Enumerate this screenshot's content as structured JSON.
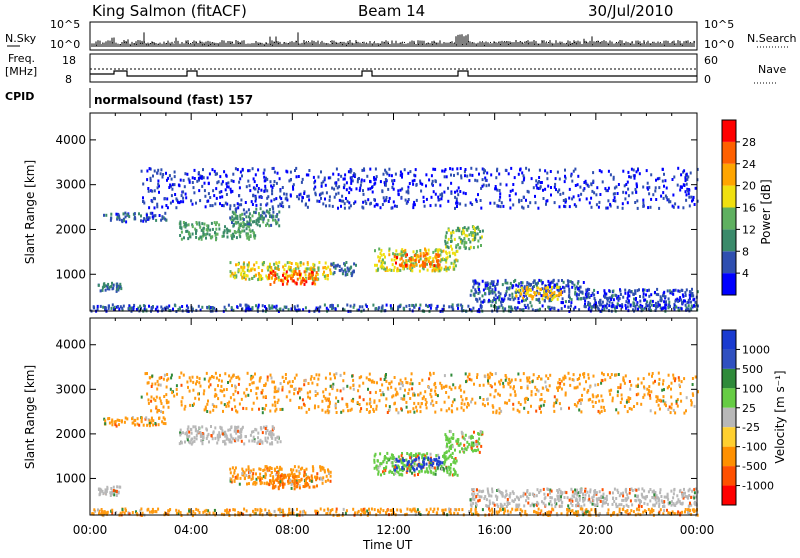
{
  "header": {
    "station": "King Salmon (fitACF)",
    "beam": "Beam 14",
    "date": "30/Jul/2010"
  },
  "status_panels": {
    "nsky_label": "N.Sky",
    "nsearch_label": "N.Search",
    "nsky_ticks": [
      "10^5",
      "10^0"
    ],
    "nsearch_ticks": [
      "10^5",
      "10^0"
    ],
    "freq_label_line1": "Freq.",
    "freq_label_line2": "[MHz]",
    "freq_ticks": [
      "18",
      "8"
    ],
    "nave_label": "Nave",
    "nave_ticks": [
      "60",
      "0"
    ],
    "cpid_label": "CPID",
    "cpid_text": "normalsound (fast) 157"
  },
  "colors": {
    "power_scale": [
      "#0000ff",
      "#2f4fb0",
      "#3a8a6a",
      "#5fb060",
      "#f0e010",
      "#ffa500",
      "#ff6000",
      "#ff0000"
    ],
    "velocity_scale": [
      "#1a3bd0",
      "#3050c0",
      "#2f8a3a",
      "#66cc44",
      "#b8b8b8",
      "#ffd030",
      "#ff9000",
      "#ff5000",
      "#ff0000"
    ]
  },
  "chart_data": [
    {
      "type": "heatmap",
      "name": "power",
      "ylabel": "Slant Range [km]",
      "xlabel": "",
      "x_ticks": [
        "00:00",
        "04:00",
        "08:00",
        "12:00",
        "16:00",
        "20:00",
        "00:00"
      ],
      "y_ticks": [
        "1000",
        "2000",
        "3000",
        "4000"
      ],
      "ylim": [
        180,
        4600
      ],
      "xlim_hours": [
        0,
        24
      ],
      "colorbar_label": "Power [dB]",
      "colorbar_ticks": [
        "4",
        "8",
        "12",
        "16",
        "20",
        "24",
        "28"
      ],
      "colorbar_range": [
        0,
        32
      ],
      "scatter_regions": [
        {
          "t": [
            0.3,
            1.2
          ],
          "r": [
            650,
            850
          ],
          "level": 8
        },
        {
          "t": [
            0.5,
            3.0
          ],
          "r": [
            2200,
            2400
          ],
          "level": 6
        },
        {
          "t": [
            3.5,
            6.5
          ],
          "r": [
            1800,
            2200
          ],
          "level": 12
        },
        {
          "t": [
            5.5,
            7.5
          ],
          "r": [
            2100,
            2500
          ],
          "level": 10
        },
        {
          "t": [
            5.5,
            9.5
          ],
          "r": [
            900,
            1300
          ],
          "level": 18
        },
        {
          "t": [
            7.0,
            9.0
          ],
          "r": [
            800,
            1100
          ],
          "level": 26
        },
        {
          "t": [
            9.5,
            10.5
          ],
          "r": [
            1000,
            1300
          ],
          "level": 8
        },
        {
          "t": [
            11.2,
            14.5
          ],
          "r": [
            1100,
            1600
          ],
          "level": 17
        },
        {
          "t": [
            12.0,
            13.8
          ],
          "r": [
            1200,
            1500
          ],
          "level": 25
        },
        {
          "t": [
            14.0,
            15.5
          ],
          "r": [
            1600,
            2100
          ],
          "level": 14
        },
        {
          "t": [
            15.0,
            19.5
          ],
          "r": [
            400,
            900
          ],
          "level": 6
        },
        {
          "t": [
            16.8,
            18.6
          ],
          "r": [
            450,
            750
          ],
          "level": 20
        },
        {
          "t": [
            19.5,
            24.0
          ],
          "r": [
            300,
            700
          ],
          "level": 5
        },
        {
          "t": [
            0.0,
            24.0
          ],
          "r": [
            200,
            350
          ],
          "level": 6
        },
        {
          "t": [
            2.0,
            24.0
          ],
          "r": [
            2500,
            3400
          ],
          "level": 4
        }
      ]
    },
    {
      "type": "heatmap",
      "name": "velocity",
      "ylabel": "Slant Range [km]",
      "xlabel": "Time UT",
      "x_ticks": [
        "00:00",
        "04:00",
        "08:00",
        "12:00",
        "16:00",
        "20:00",
        "00:00"
      ],
      "y_ticks": [
        "1000",
        "2000",
        "3000",
        "4000"
      ],
      "ylim": [
        180,
        4600
      ],
      "xlim_hours": [
        0,
        24
      ],
      "colorbar_label": "Velocity [m s⁻¹]",
      "colorbar_ticks": [
        "1000",
        "500",
        "100",
        "25",
        "-25",
        "-100",
        "-500",
        "-1000"
      ],
      "scatter_regions": [
        {
          "t": [
            0.3,
            1.2
          ],
          "r": [
            650,
            850
          ],
          "level": "grey"
        },
        {
          "t": [
            0.5,
            3.0
          ],
          "r": [
            2200,
            2400
          ],
          "level": "orange"
        },
        {
          "t": [
            3.5,
            7.5
          ],
          "r": [
            1800,
            2200
          ],
          "level": "grey"
        },
        {
          "t": [
            5.5,
            9.5
          ],
          "r": [
            900,
            1300
          ],
          "level": "orange"
        },
        {
          "t": [
            7.0,
            9.0
          ],
          "r": [
            800,
            1100
          ],
          "level": "darkorange"
        },
        {
          "t": [
            11.2,
            14.5
          ],
          "r": [
            1100,
            1600
          ],
          "level": "green"
        },
        {
          "t": [
            12.0,
            14.0
          ],
          "r": [
            1200,
            1500
          ],
          "level": "blue"
        },
        {
          "t": [
            14.0,
            15.5
          ],
          "r": [
            1600,
            2100
          ],
          "level": "green"
        },
        {
          "t": [
            15.0,
            24.0
          ],
          "r": [
            400,
            800
          ],
          "level": "grey"
        },
        {
          "t": [
            0.0,
            24.0
          ],
          "r": [
            200,
            350
          ],
          "level": "orange"
        },
        {
          "t": [
            2.0,
            24.0
          ],
          "r": [
            2500,
            3400
          ],
          "level": "orange"
        }
      ]
    }
  ]
}
